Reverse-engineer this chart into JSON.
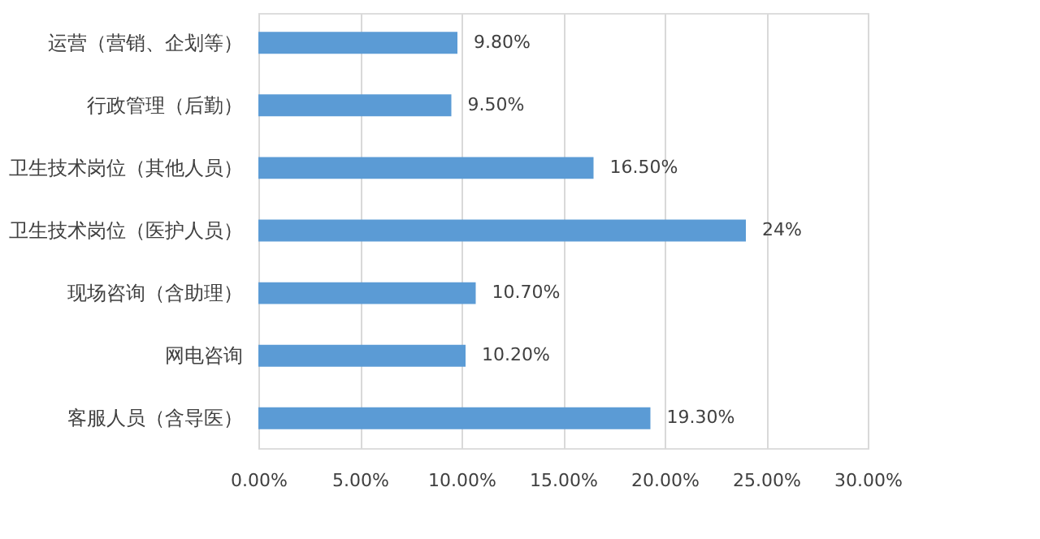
{
  "chart_data": {
    "type": "bar",
    "orientation": "horizontal",
    "categories": [
      "运营（营销、企划等）",
      "行政管理（后勤）",
      "卫生技术岗位（其他人员）",
      "卫生技术岗位（医护人员）",
      "现场咨询（含助理）",
      "网电咨询",
      "客服人员（含导医）"
    ],
    "values": [
      9.8,
      9.5,
      16.5,
      24,
      10.7,
      10.2,
      19.3
    ],
    "value_labels": [
      "9.80%",
      "9.50%",
      "16.50%",
      "24%",
      "10.70%",
      "10.20%",
      "19.30%"
    ],
    "color": "#5b9bd5",
    "xlim": [
      0,
      30
    ],
    "xticks": [
      {
        "value": 0,
        "label": "0.00%"
      },
      {
        "value": 5,
        "label": "5.00%"
      },
      {
        "value": 10,
        "label": "10.00%"
      },
      {
        "value": 15,
        "label": "15.00%"
      },
      {
        "value": 20,
        "label": "20.00%"
      },
      {
        "value": 25,
        "label": "25.00%"
      },
      {
        "value": 30,
        "label": "30.00%"
      }
    ],
    "grid": "x"
  }
}
